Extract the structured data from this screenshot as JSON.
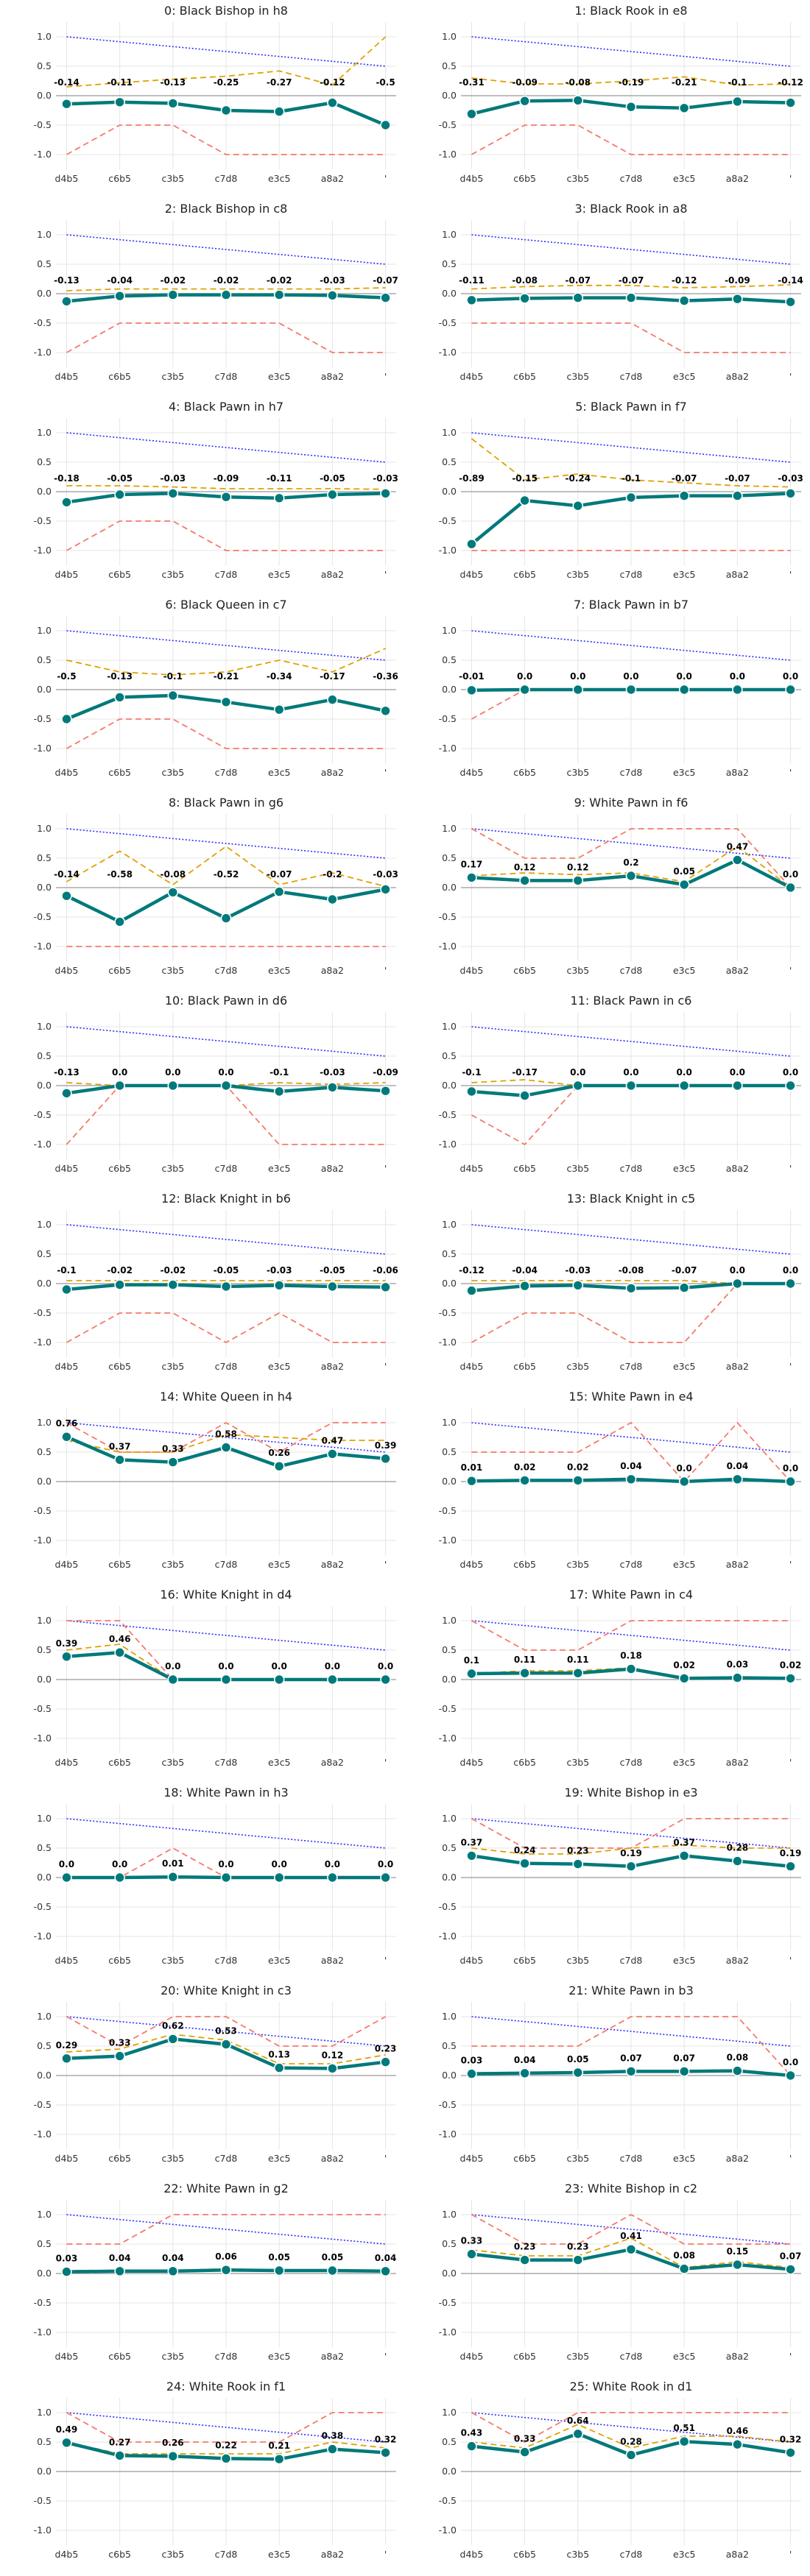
{
  "chart_data": {
    "type": "line",
    "categories": [
      "d4b5",
      "c6b5",
      "c3b5",
      "c7d8",
      "e3c5",
      "a8a2",
      ""
    ],
    "xtick_labels": [
      "d4b5",
      "c6b5",
      "c3b5",
      "c7d8",
      "e3c5",
      "a8a2",
      "'"
    ],
    "ylim": [
      -1.25,
      1.25
    ],
    "yticks": [
      "1.0",
      "0.5",
      "0.0",
      "-0.5",
      "-1.0"
    ],
    "grid": true,
    "colors": {
      "main": "#00797a",
      "orange_dashed": "#e0a100",
      "red_dashed": "#f47a6a",
      "blue_dotted": "#2c2cff",
      "zero_line": "#999999",
      "grid": "#e5e5e5",
      "marker_edge": "#ffffff"
    },
    "panels": [
      {
        "title": "0: Black Bishop in h8",
        "values": [
          -0.14,
          -0.11,
          -0.13,
          -0.25,
          -0.27,
          -0.12,
          -0.5
        ],
        "labels": [
          "-0.14",
          "-0.11",
          "-0.13",
          "-0.25",
          "-0.27",
          "-0.12",
          "-0.5"
        ],
        "orange": [
          0.15,
          0.22,
          0.28,
          0.33,
          0.42,
          0.18,
          1.0
        ],
        "red": [
          -1.0,
          -0.5,
          -0.5,
          -1.0,
          -1.0,
          -1.0,
          -1.0
        ]
      },
      {
        "title": "1: Black Rook in e8",
        "values": [
          -0.31,
          -0.09,
          -0.08,
          -0.19,
          -0.21,
          -0.1,
          -0.12
        ],
        "labels": [
          "-0.31",
          "-0.09",
          "-0.08",
          "-0.19",
          "-0.21",
          "-0.1",
          "-0.12"
        ],
        "orange": [
          0.3,
          0.2,
          0.2,
          0.25,
          0.32,
          0.18,
          0.2
        ],
        "red": [
          -1.0,
          -0.5,
          -0.5,
          -1.0,
          -1.0,
          -1.0,
          -1.0
        ]
      },
      {
        "title": "2: Black Bishop in c8",
        "values": [
          -0.13,
          -0.04,
          -0.02,
          -0.02,
          -0.02,
          -0.03,
          -0.07
        ],
        "labels": [
          "-0.13",
          "-0.04",
          "-0.02",
          "-0.02",
          "-0.02",
          "-0.03",
          "-0.07"
        ],
        "orange": [
          0.05,
          0.08,
          0.08,
          0.08,
          0.08,
          0.08,
          0.1
        ],
        "red": [
          -1.0,
          -0.5,
          -0.5,
          -0.5,
          -0.5,
          -1.0,
          -1.0
        ]
      },
      {
        "title": "3: Black Rook in a8",
        "values": [
          -0.11,
          -0.08,
          -0.07,
          -0.07,
          -0.12,
          -0.09,
          -0.14
        ],
        "labels": [
          "-0.11",
          "-0.08",
          "-0.07",
          "-0.07",
          "-0.12",
          "-0.09",
          "-0.14"
        ],
        "orange": [
          0.08,
          0.12,
          0.14,
          0.14,
          0.1,
          0.12,
          0.15
        ],
        "red": [
          -0.5,
          -0.5,
          -0.5,
          -0.5,
          -1.0,
          -1.0,
          -1.0
        ]
      },
      {
        "title": "4: Black Pawn in h7",
        "values": [
          -0.18,
          -0.05,
          -0.03,
          -0.09,
          -0.11,
          -0.05,
          -0.03
        ],
        "labels": [
          "-0.18",
          "-0.05",
          "-0.03",
          "-0.09",
          "-0.11",
          "-0.05",
          "-0.03"
        ],
        "orange": [
          0.1,
          0.1,
          0.08,
          0.05,
          0.05,
          0.05,
          0.04
        ],
        "red": [
          -1.0,
          -0.5,
          -0.5,
          -1.0,
          -1.0,
          -1.0,
          -1.0
        ]
      },
      {
        "title": "5: Black Pawn in f7",
        "values": [
          -0.89,
          -0.15,
          -0.24,
          -0.1,
          -0.07,
          -0.07,
          -0.03
        ],
        "labels": [
          "-0.89",
          "-0.15",
          "-0.24",
          "-0.1",
          "-0.07",
          "-0.07",
          "-0.03"
        ],
        "orange": [
          0.9,
          0.2,
          0.3,
          0.2,
          0.15,
          0.1,
          0.08
        ],
        "red": [
          -1.0,
          -1.0,
          -1.0,
          -1.0,
          -1.0,
          -1.0,
          -1.0
        ]
      },
      {
        "title": "6: Black Queen in c7",
        "values": [
          -0.5,
          -0.13,
          -0.1,
          -0.21,
          -0.34,
          -0.17,
          -0.36
        ],
        "labels": [
          "-0.5",
          "-0.13",
          "-0.1",
          "-0.21",
          "-0.34",
          "-0.17",
          "-0.36"
        ],
        "orange": [
          0.5,
          0.3,
          0.25,
          0.3,
          0.5,
          0.3,
          0.7
        ],
        "red": [
          -1.0,
          -0.5,
          -0.5,
          -1.0,
          -1.0,
          -1.0,
          -1.0
        ]
      },
      {
        "title": "7: Black Pawn in b7",
        "values": [
          -0.01,
          0.0,
          0.0,
          0.0,
          0.0,
          0.0,
          0.0
        ],
        "labels": [
          "-0.01",
          "0.0",
          "0.0",
          "0.0",
          "0.0",
          "0.0",
          "0.0"
        ],
        "orange": [
          -0.02,
          0.0,
          0.0,
          0.0,
          0.0,
          0.0,
          0.0
        ],
        "red": [
          -0.5,
          0.0,
          0.0,
          0.0,
          0.0,
          0.0,
          0.0
        ]
      },
      {
        "title": "8: Black Pawn in g6",
        "values": [
          -0.14,
          -0.58,
          -0.08,
          -0.52,
          -0.07,
          -0.2,
          -0.03
        ],
        "labels": [
          "-0.14",
          "-0.58",
          "-0.08",
          "-0.52",
          "-0.07",
          "-0.2",
          "-0.03"
        ],
        "orange": [
          0.1,
          0.62,
          0.05,
          0.7,
          0.05,
          0.25,
          0.02
        ],
        "red": [
          -1.0,
          -1.0,
          -1.0,
          -1.0,
          -1.0,
          -1.0,
          -1.0
        ]
      },
      {
        "title": "9: White Pawn in f6",
        "values": [
          0.17,
          0.12,
          0.12,
          0.2,
          0.05,
          0.47,
          0.0
        ],
        "labels": [
          "0.17",
          "0.12",
          "0.12",
          "0.2",
          "0.05",
          "0.47",
          "0.0"
        ],
        "orange": [
          0.2,
          0.25,
          0.22,
          0.25,
          0.1,
          0.7,
          0.0
        ],
        "red": [
          1.0,
          0.5,
          0.5,
          1.0,
          1.0,
          1.0,
          0.0
        ]
      },
      {
        "title": "10: Black Pawn in d6",
        "values": [
          -0.13,
          0.0,
          0.0,
          0.0,
          -0.1,
          -0.03,
          -0.09
        ],
        "labels": [
          "-0.13",
          "0.0",
          "0.0",
          "0.0",
          "-0.1",
          "-0.03",
          "-0.09"
        ],
        "orange": [
          0.05,
          0.0,
          0.0,
          0.0,
          0.05,
          0.02,
          0.05
        ],
        "red": [
          -1.0,
          0.0,
          0.0,
          0.0,
          -1.0,
          -1.0,
          -1.0
        ]
      },
      {
        "title": "11: Black Pawn in c6",
        "values": [
          -0.1,
          -0.17,
          0.0,
          0.0,
          0.0,
          0.0,
          0.0
        ],
        "labels": [
          "-0.1",
          "-0.17",
          "0.0",
          "0.0",
          "0.0",
          "0.0",
          "0.0"
        ],
        "orange": [
          0.05,
          0.1,
          0.0,
          0.0,
          0.0,
          0.0,
          0.0
        ],
        "red": [
          -0.5,
          -1.0,
          0.0,
          0.0,
          0.0,
          0.0,
          0.0
        ]
      },
      {
        "title": "12: Black Knight in b6",
        "values": [
          -0.1,
          -0.02,
          -0.02,
          -0.05,
          -0.03,
          -0.05,
          -0.06
        ],
        "labels": [
          "-0.1",
          "-0.02",
          "-0.02",
          "-0.05",
          "-0.03",
          "-0.05",
          "-0.06"
        ],
        "orange": [
          0.05,
          0.05,
          0.05,
          0.05,
          0.05,
          0.05,
          0.05
        ],
        "red": [
          -1.0,
          -0.5,
          -0.5,
          -1.0,
          -0.5,
          -1.0,
          -1.0
        ]
      },
      {
        "title": "13: Black Knight in c5",
        "values": [
          -0.12,
          -0.04,
          -0.03,
          -0.08,
          -0.07,
          0.0,
          0.0
        ],
        "labels": [
          "-0.12",
          "-0.04",
          "-0.03",
          "-0.08",
          "-0.07",
          "0.0",
          "0.0"
        ],
        "orange": [
          0.05,
          0.05,
          0.05,
          0.05,
          0.05,
          0.0,
          0.0
        ],
        "red": [
          -1.0,
          -0.5,
          -0.5,
          -1.0,
          -1.0,
          0.0,
          0.0
        ]
      },
      {
        "title": "14: White Queen in h4",
        "values": [
          0.76,
          0.37,
          0.33,
          0.58,
          0.26,
          0.47,
          0.39
        ],
        "labels": [
          "0.76",
          "0.37",
          "0.33",
          "0.58",
          "0.26",
          "0.47",
          "0.39"
        ],
        "orange": [
          0.7,
          0.5,
          0.5,
          0.8,
          0.75,
          0.7,
          0.7
        ],
        "red": [
          1.0,
          0.5,
          0.5,
          1.0,
          0.5,
          1.0,
          1.0
        ]
      },
      {
        "title": "15: White Pawn in e4",
        "values": [
          0.01,
          0.02,
          0.02,
          0.04,
          0.0,
          0.04,
          0.0
        ],
        "labels": [
          "0.01",
          "0.02",
          "0.02",
          "0.04",
          "0.0",
          "0.04",
          "0.0"
        ],
        "orange": [
          0.01,
          0.02,
          0.02,
          0.04,
          0.0,
          0.04,
          0.0
        ],
        "red": [
          0.5,
          0.5,
          0.5,
          1.0,
          0.0,
          1.0,
          0.0
        ]
      },
      {
        "title": "16: White Knight in d4",
        "values": [
          0.39,
          0.46,
          0.0,
          0.0,
          0.0,
          0.0,
          0.0
        ],
        "labels": [
          "0.39",
          "0.46",
          "0.0",
          "0.0",
          "0.0",
          "0.0",
          "0.0"
        ],
        "orange": [
          0.5,
          0.6,
          0.0,
          0.0,
          0.0,
          0.0,
          0.0
        ],
        "red": [
          1.0,
          1.0,
          0.0,
          0.0,
          0.0,
          0.0,
          0.0
        ]
      },
      {
        "title": "17: White Pawn in c4",
        "values": [
          0.1,
          0.11,
          0.11,
          0.18,
          0.02,
          0.03,
          0.02
        ],
        "labels": [
          "0.1",
          "0.11",
          "0.11",
          "0.18",
          "0.02",
          "0.03",
          "0.02"
        ],
        "orange": [
          0.1,
          0.15,
          0.15,
          0.2,
          0.03,
          0.05,
          0.03
        ],
        "red": [
          1.0,
          0.5,
          0.5,
          1.0,
          1.0,
          1.0,
          1.0
        ]
      },
      {
        "title": "18: White Pawn in h3",
        "values": [
          0.0,
          0.0,
          0.01,
          0.0,
          0.0,
          0.0,
          0.0
        ],
        "labels": [
          "0.0",
          "0.0",
          "0.01",
          "0.0",
          "0.0",
          "0.0",
          "0.0"
        ],
        "orange": [
          0.0,
          0.0,
          0.02,
          0.0,
          0.0,
          0.0,
          0.0
        ],
        "red": [
          0.0,
          0.0,
          0.5,
          0.0,
          0.0,
          0.0,
          0.0
        ]
      },
      {
        "title": "19: White Bishop in e3",
        "values": [
          0.37,
          0.24,
          0.23,
          0.19,
          0.37,
          0.28,
          0.19
        ],
        "labels": [
          "0.37",
          "0.24",
          "0.23",
          "0.19",
          "0.37",
          "0.28",
          "0.19"
        ],
        "orange": [
          0.5,
          0.4,
          0.4,
          0.5,
          0.55,
          0.5,
          0.5
        ],
        "red": [
          1.0,
          0.5,
          0.5,
          0.5,
          1.0,
          1.0,
          1.0
        ]
      },
      {
        "title": "20: White Knight in c3",
        "values": [
          0.29,
          0.33,
          0.62,
          0.53,
          0.13,
          0.12,
          0.23
        ],
        "labels": [
          "0.29",
          "0.33",
          "0.62",
          "0.53",
          "0.13",
          "0.12",
          "0.23"
        ],
        "orange": [
          0.4,
          0.45,
          0.7,
          0.6,
          0.2,
          0.2,
          0.35
        ],
        "red": [
          1.0,
          0.5,
          1.0,
          1.0,
          0.5,
          0.5,
          1.0
        ]
      },
      {
        "title": "21: White Pawn in b3",
        "values": [
          0.03,
          0.04,
          0.05,
          0.07,
          0.07,
          0.08,
          0.0
        ],
        "labels": [
          "0.03",
          "0.04",
          "0.05",
          "0.07",
          "0.07",
          "0.08",
          "0.0"
        ],
        "orange": [
          0.05,
          0.05,
          0.06,
          0.08,
          0.08,
          0.1,
          0.0
        ],
        "red": [
          0.5,
          0.5,
          0.5,
          1.0,
          1.0,
          1.0,
          0.0
        ]
      },
      {
        "title": "22: White Pawn in g2",
        "values": [
          0.03,
          0.04,
          0.04,
          0.06,
          0.05,
          0.05,
          0.04
        ],
        "labels": [
          "0.03",
          "0.04",
          "0.04",
          "0.06",
          "0.05",
          "0.05",
          "0.04"
        ],
        "orange": [
          0.05,
          0.05,
          0.05,
          0.08,
          0.06,
          0.06,
          0.05
        ],
        "red": [
          0.5,
          0.5,
          1.0,
          1.0,
          1.0,
          1.0,
          1.0
        ]
      },
      {
        "title": "23: White Bishop in c2",
        "values": [
          0.33,
          0.23,
          0.23,
          0.41,
          0.08,
          0.15,
          0.07
        ],
        "labels": [
          "0.33",
          "0.23",
          "0.23",
          "0.41",
          "0.08",
          "0.15",
          "0.07"
        ],
        "orange": [
          0.4,
          0.3,
          0.3,
          0.6,
          0.1,
          0.2,
          0.1
        ],
        "red": [
          1.0,
          0.5,
          0.5,
          1.0,
          0.5,
          0.5,
          0.5
        ]
      },
      {
        "title": "24: White Rook in f1",
        "values": [
          0.49,
          0.27,
          0.26,
          0.22,
          0.21,
          0.38,
          0.32
        ],
        "labels": [
          "0.49",
          "0.27",
          "0.26",
          "0.22",
          "0.21",
          "0.38",
          "0.32"
        ],
        "orange": [
          0.5,
          0.3,
          0.3,
          0.3,
          0.3,
          0.5,
          0.4
        ],
        "red": [
          1.0,
          0.5,
          0.5,
          0.5,
          0.5,
          1.0,
          1.0
        ]
      },
      {
        "title": "25: White Rook in d1",
        "values": [
          0.43,
          0.33,
          0.64,
          0.28,
          0.51,
          0.46,
          0.32
        ],
        "labels": [
          "0.43",
          "0.33",
          "0.64",
          "0.28",
          "0.51",
          "0.46",
          "0.32"
        ],
        "orange": [
          0.5,
          0.4,
          0.8,
          0.4,
          0.6,
          0.6,
          0.5
        ],
        "red": [
          1.0,
          0.5,
          1.0,
          1.0,
          1.0,
          1.0,
          1.0
        ]
      }
    ]
  }
}
